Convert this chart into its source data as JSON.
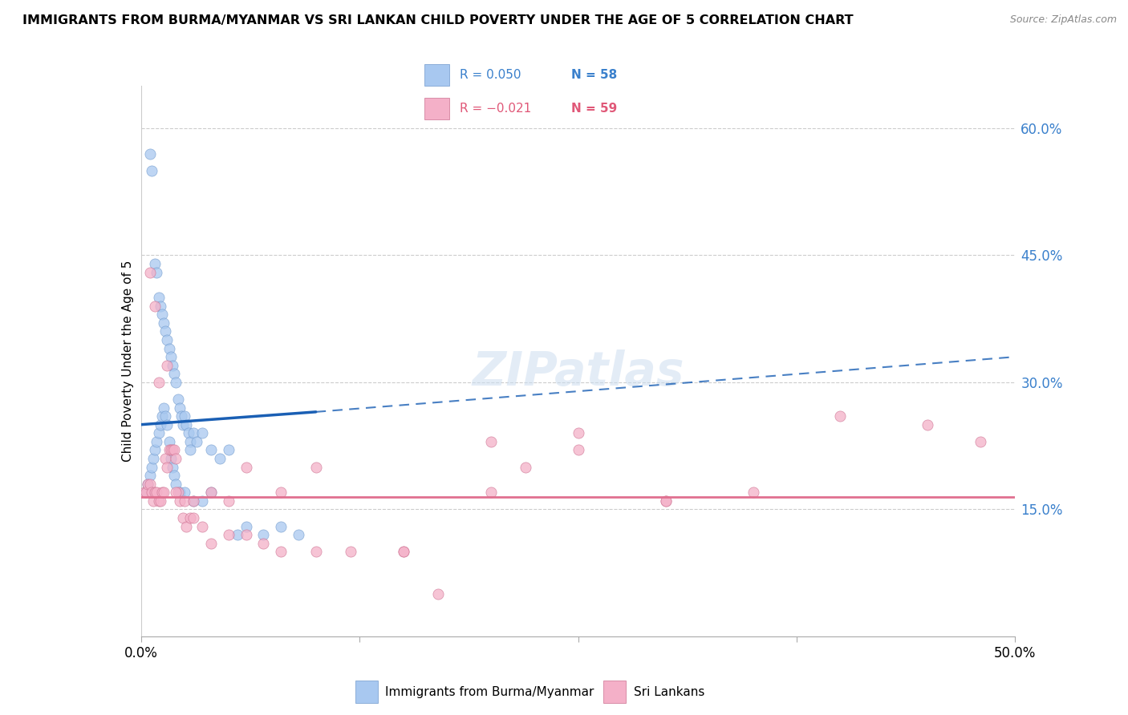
{
  "title": "IMMIGRANTS FROM BURMA/MYANMAR VS SRI LANKAN CHILD POVERTY UNDER THE AGE OF 5 CORRELATION CHART",
  "source": "Source: ZipAtlas.com",
  "ylabel": "Child Poverty Under the Age of 5",
  "legend_label1": "Immigrants from Burma/Myanmar",
  "legend_label2": "Sri Lankans",
  "legend_r1": "R = 0.050",
  "legend_n1": "N = 58",
  "legend_r2": "R = -0.021",
  "legend_n2": "N = 59",
  "color_blue": "#a8c8f0",
  "color_pink": "#f4b0c8",
  "color_blue_line": "#1a5fb4",
  "color_pink_line": "#e07090",
  "color_blue_text": "#3a80cc",
  "color_pink_text": "#e05878",
  "watermark": "ZIPatlas",
  "xlim": [
    0,
    50
  ],
  "ylim": [
    0,
    65
  ],
  "ytick_values": [
    15,
    30,
    45,
    60
  ],
  "blue_x": [
    0.5,
    0.6,
    0.8,
    0.9,
    1.0,
    1.1,
    1.2,
    1.3,
    1.4,
    1.5,
    1.6,
    1.7,
    1.8,
    1.9,
    2.0,
    2.1,
    2.2,
    2.3,
    2.4,
    2.5,
    2.6,
    2.7,
    2.8,
    3.0,
    3.2,
    3.5,
    4.0,
    4.5,
    5.0,
    0.3,
    0.4,
    0.5,
    0.6,
    0.7,
    0.8,
    0.9,
    1.0,
    1.1,
    1.2,
    1.3,
    1.4,
    1.5,
    1.6,
    1.7,
    1.8,
    1.9,
    2.0,
    2.2,
    2.5,
    2.8,
    3.0,
    3.5,
    4.0,
    5.5,
    6.0,
    7.0,
    8.0,
    9.0
  ],
  "blue_y": [
    57,
    55,
    44,
    43,
    40,
    39,
    38,
    37,
    36,
    35,
    34,
    33,
    32,
    31,
    30,
    28,
    27,
    26,
    25,
    26,
    25,
    24,
    23,
    24,
    23,
    24,
    22,
    21,
    22,
    17,
    18,
    19,
    20,
    21,
    22,
    23,
    24,
    25,
    26,
    27,
    26,
    25,
    23,
    21,
    20,
    19,
    18,
    17,
    17,
    22,
    16,
    16,
    17,
    12,
    13,
    12,
    13,
    12
  ],
  "pink_x": [
    0.2,
    0.3,
    0.4,
    0.5,
    0.6,
    0.7,
    0.8,
    0.9,
    1.0,
    1.1,
    1.2,
    1.3,
    1.4,
    1.5,
    1.6,
    1.7,
    1.8,
    1.9,
    2.0,
    2.1,
    2.2,
    2.4,
    2.6,
    2.8,
    3.0,
    3.5,
    4.0,
    5.0,
    6.0,
    7.0,
    8.0,
    10.0,
    12.0,
    15.0,
    17.0,
    20.0,
    22.0,
    25.0,
    30.0,
    35.0,
    40.0,
    45.0,
    48.0,
    0.5,
    0.8,
    1.0,
    1.5,
    2.0,
    2.5,
    3.0,
    4.0,
    5.0,
    6.0,
    8.0,
    10.0,
    15.0,
    20.0,
    25.0,
    30.0
  ],
  "pink_y": [
    17,
    17,
    18,
    18,
    17,
    16,
    17,
    17,
    16,
    16,
    17,
    17,
    21,
    20,
    22,
    22,
    22,
    22,
    21,
    17,
    16,
    14,
    13,
    14,
    14,
    13,
    11,
    12,
    12,
    11,
    10,
    10,
    10,
    10,
    5,
    17,
    20,
    22,
    16,
    17,
    26,
    25,
    23,
    43,
    39,
    30,
    32,
    17,
    16,
    16,
    17,
    16,
    20,
    17,
    20,
    10,
    23,
    24,
    16
  ],
  "blue_trend_x0": 0,
  "blue_trend_x_break": 10,
  "blue_trend_x1": 50,
  "blue_trend_y0": 25.0,
  "blue_trend_y_break": 26.5,
  "blue_trend_y1": 33.0,
  "pink_trend_y": 16.5,
  "hgrid_values": [
    15,
    30,
    45,
    60
  ]
}
